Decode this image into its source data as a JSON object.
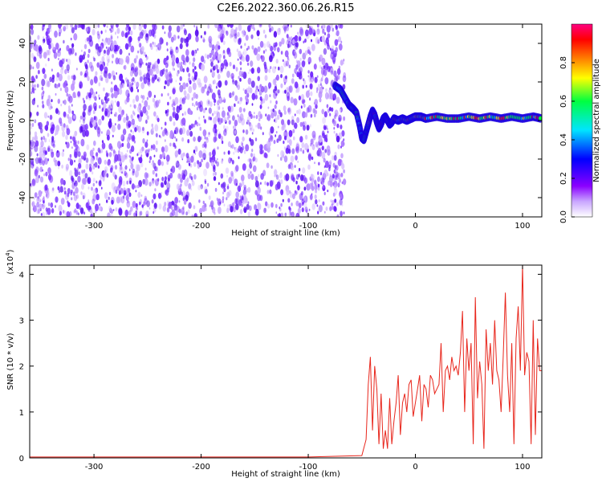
{
  "title": "C2E6.2022.360.06.26.R15",
  "colors": {
    "spectrogram_noise": "#6a1cff",
    "snr_line": "#e8261c",
    "axis": "#000000"
  },
  "chart_data": [
    {
      "type": "heatmap",
      "xlabel": "Height of straight line (km)",
      "ylabel": "Frequency (Hz)",
      "xlim": [
        -360,
        118
      ],
      "ylim": [
        -50,
        50
      ],
      "x_ticks": [
        -300,
        -200,
        -100,
        0,
        100
      ],
      "y_ticks": [
        -40,
        -20,
        0,
        20,
        40
      ],
      "noise_region_x": [
        -360,
        -66
      ],
      "signal_track": {
        "x": [
          -75,
          -70,
          -66,
          -62,
          -58,
          -55,
          -52,
          -50,
          -48,
          -46,
          -44,
          -42,
          -40,
          -38,
          -36,
          -34,
          -32,
          -30,
          -28,
          -26,
          -24,
          -22,
          -20,
          -16,
          -12,
          -8,
          -4,
          0,
          5,
          10,
          20,
          30,
          40,
          50,
          60,
          70,
          80,
          90,
          100,
          110,
          118
        ],
        "y": [
          18,
          16,
          12,
          8,
          6,
          4,
          -3,
          -9,
          -10,
          -6,
          -2,
          2,
          5,
          3,
          -1,
          -4,
          -2,
          1,
          2,
          0,
          -2,
          -1,
          1,
          0,
          1,
          0,
          1,
          2,
          2,
          1,
          2,
          1,
          1,
          2,
          1,
          2,
          1,
          2,
          1,
          2,
          1
        ]
      },
      "colorbar": {
        "label": "Normalized spectral amplitude",
        "range": [
          0,
          1
        ],
        "ticks": [
          "0.0",
          "0.2",
          "0.4",
          "0.6",
          "0.8"
        ],
        "colors": [
          "#ffffff",
          "#8a00ff",
          "#0000ff",
          "#00e5ff",
          "#00ff40",
          "#ffff00",
          "#ff8000",
          "#ff0000",
          "#ff0080"
        ]
      }
    },
    {
      "type": "line",
      "xlabel": "Height of straight line (km)",
      "ylabel": "SNR (10 * v/v)",
      "y_multiplier": "(x10",
      "y_multiplier_exp": "4",
      "y_multiplier_close": ")",
      "xlim": [
        -360,
        118
      ],
      "ylim": [
        0,
        4.2
      ],
      "x_ticks": [
        -300,
        -200,
        -100,
        0,
        100
      ],
      "y_ticks": [
        0,
        1,
        2,
        3,
        4
      ],
      "series": [
        {
          "x": [
            -360,
            -300,
            -200,
            -100,
            -50,
            -46,
            -44,
            -42,
            -40,
            -38,
            -36,
            -34,
            -32,
            -30,
            -28,
            -26,
            -24,
            -22,
            -20,
            -18,
            -16,
            -14,
            -12,
            -10,
            -8,
            -6,
            -4,
            -2,
            0,
            2,
            4,
            6,
            8,
            10,
            12,
            14,
            16,
            18,
            20,
            22,
            24,
            26,
            28,
            30,
            32,
            34,
            36,
            38,
            40,
            42,
            44,
            46,
            48,
            50,
            52,
            54,
            56,
            58,
            60,
            62,
            64,
            66,
            68,
            70,
            72,
            74,
            76,
            78,
            80,
            82,
            84,
            86,
            88,
            90,
            92,
            94,
            96,
            98,
            100,
            102,
            104,
            106,
            108,
            110,
            112,
            114,
            116,
            118
          ],
          "y": [
            0.02,
            0.02,
            0.02,
            0.02,
            0.05,
            0.4,
            1.6,
            2.2,
            0.6,
            2.0,
            1.5,
            0.3,
            1.4,
            0.2,
            0.6,
            0.2,
            1.3,
            0.3,
            0.8,
            1.2,
            1.8,
            0.5,
            1.2,
            1.4,
            1.0,
            1.6,
            1.7,
            0.9,
            1.2,
            1.5,
            1.8,
            0.8,
            1.6,
            1.5,
            1.1,
            1.8,
            1.7,
            1.4,
            1.5,
            1.6,
            2.5,
            1.0,
            1.9,
            2.0,
            1.7,
            2.2,
            1.9,
            2.0,
            1.8,
            2.3,
            3.2,
            1.0,
            2.6,
            1.9,
            2.5,
            0.3,
            3.5,
            1.3,
            2.1,
            1.6,
            0.2,
            2.8,
            1.9,
            2.5,
            1.6,
            3.0,
            1.9,
            1.7,
            1.0,
            2.2,
            3.6,
            1.8,
            1.0,
            2.5,
            0.3,
            2.6,
            3.3,
            1.9,
            4.2,
            1.8,
            2.3,
            2.1,
            0.3,
            3.0,
            0.5,
            2.6,
            1.9,
            1.9
          ]
        }
      ]
    }
  ]
}
